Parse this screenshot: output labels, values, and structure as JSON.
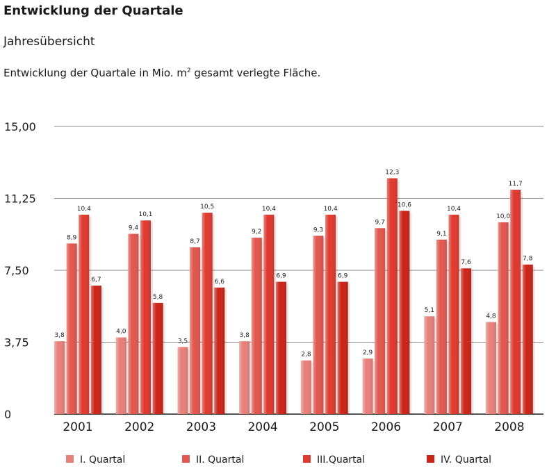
{
  "heading": {
    "title": "Entwicklung der Quartale",
    "subtitle": "Jahresübersicht",
    "caption_main": "Entwicklung der Quartale in Mio. m",
    "caption_sup": "2",
    "caption_rest": " gesamt verlegte Fläche."
  },
  "chart_data": {
    "type": "bar",
    "categories": [
      "2001",
      "2002",
      "2003",
      "2004",
      "2005",
      "2006",
      "2007",
      "2008"
    ],
    "series": [
      {
        "name": "I. Quartal",
        "color": "#e8807a",
        "values": [
          3.8,
          4.0,
          3.5,
          3.8,
          2.8,
          2.9,
          5.1,
          4.8
        ],
        "labels": [
          "3,8",
          "4,0",
          "3,5",
          "3,8",
          "2,8",
          "2,9",
          "5,1",
          "4,8"
        ]
      },
      {
        "name": "II. Quartal",
        "color": "#e2574f",
        "values": [
          8.9,
          9.4,
          8.7,
          9.2,
          9.3,
          9.7,
          9.1,
          10.0
        ],
        "labels": [
          "8,9",
          "9,4",
          "8,7",
          "9,2",
          "9,3",
          "9,7",
          "9,1",
          "10,0"
        ]
      },
      {
        "name": "III.Quartal",
        "color": "#e0392e",
        "values": [
          10.4,
          10.1,
          10.5,
          10.4,
          10.4,
          12.3,
          10.4,
          11.7
        ],
        "labels": [
          "10,4",
          "10,1",
          "10,5",
          "10,4",
          "10,4",
          "12,3",
          "10,4",
          "11,7"
        ]
      },
      {
        "name": "IV. Quartal",
        "color": "#cc2418",
        "values": [
          6.7,
          5.8,
          6.6,
          6.9,
          6.9,
          10.6,
          7.6,
          7.8
        ],
        "labels": [
          "6,7",
          "5,8",
          "6,6",
          "6,9",
          "6,9",
          "10,6",
          "7,6",
          "7,8"
        ]
      }
    ],
    "yticks": [
      0,
      3.75,
      7.5,
      11.25,
      15
    ],
    "ytick_labels": [
      "0",
      "3,75",
      "7,50",
      "11,25",
      "15,00"
    ],
    "ylim": [
      0,
      15
    ],
    "grid": true,
    "legend_position": "bottom"
  }
}
